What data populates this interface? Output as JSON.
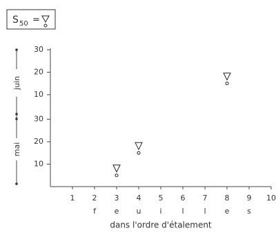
{
  "chart_data": {
    "type": "scatter",
    "legend": {
      "symbol": "S",
      "subscript": "50",
      "equals": "="
    },
    "x_label": "dans l'ordre d'étalement",
    "months": [
      "mai",
      "juin"
    ],
    "xlim": [
      0,
      10
    ],
    "xticks": [
      1,
      2,
      3,
      4,
      5,
      6,
      7,
      8,
      9,
      10
    ],
    "letters": [
      null,
      "f",
      "e",
      "u",
      "i",
      "l",
      "l",
      "e",
      "s",
      null
    ],
    "ylim": [
      0,
      61
    ],
    "yticks": [
      10,
      20,
      30,
      {
        "value": 41,
        "label": "10"
      },
      {
        "value": 51,
        "label": "20"
      },
      {
        "value": 61,
        "label": "30"
      }
    ],
    "series": [
      {
        "color": "#222",
        "x": [
          3,
          4,
          8
        ],
        "values": [
          5,
          15,
          46
        ]
      }
    ]
  }
}
